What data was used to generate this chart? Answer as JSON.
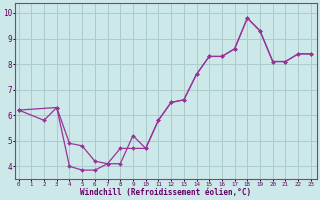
{
  "xlabel": "Windchill (Refroidissement éolien,°C)",
  "bg_color": "#cce8e8",
  "line_color": "#993399",
  "grid_color": "#aacccc",
  "axis_label_color": "#660066",
  "tick_label_color": "#660066",
  "x_ticks": [
    0,
    1,
    2,
    3,
    4,
    5,
    6,
    7,
    8,
    9,
    10,
    11,
    12,
    13,
    14,
    15,
    16,
    17,
    18,
    19,
    20,
    21,
    22,
    23
  ],
  "y_ticks": [
    4,
    5,
    6,
    7,
    8,
    9,
    10
  ],
  "ylim": [
    3.5,
    10.4
  ],
  "xlim": [
    -0.3,
    23.5
  ],
  "series1_x": [
    0,
    2,
    3,
    4,
    5,
    6,
    7,
    8,
    9,
    10,
    11,
    12,
    13,
    14,
    15,
    16,
    17,
    18,
    19,
    20,
    21,
    22,
    23
  ],
  "series1_y": [
    6.2,
    5.8,
    6.3,
    4.9,
    4.8,
    4.2,
    4.1,
    4.7,
    4.7,
    4.7,
    5.8,
    6.5,
    6.6,
    7.6,
    8.3,
    8.3,
    8.6,
    9.8,
    9.3,
    8.1,
    8.1,
    8.4,
    8.4
  ],
  "series2_x": [
    0,
    3,
    4,
    5,
    6,
    7,
    8,
    9,
    10,
    11,
    12,
    13,
    14,
    15,
    16,
    17,
    18,
    19,
    20,
    21,
    22,
    23
  ],
  "series2_y": [
    6.2,
    6.3,
    4.0,
    3.85,
    3.85,
    4.1,
    4.1,
    5.2,
    4.7,
    5.8,
    6.5,
    6.6,
    7.6,
    8.3,
    8.3,
    8.6,
    9.8,
    9.3,
    8.1,
    8.1,
    8.4,
    8.4
  ]
}
